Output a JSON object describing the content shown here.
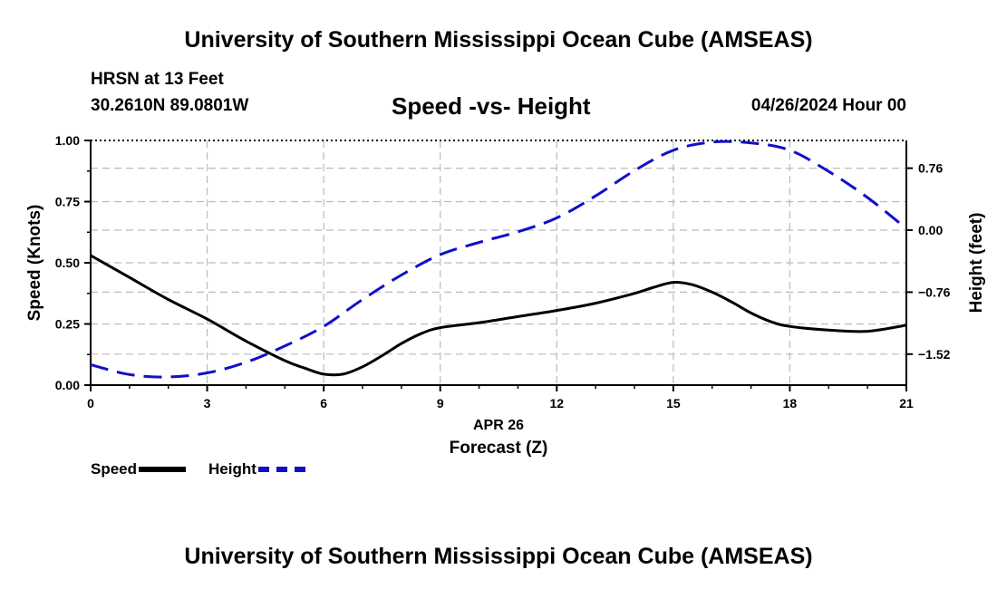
{
  "title": "University of Southern Mississippi Ocean Cube (AMSEAS)",
  "station": "HRSN at 13 Feet",
  "coordinates": "30.2610N  89.0801W",
  "subtitle": "Speed -vs- Height",
  "datetime": "04/26/2024 Hour 00",
  "footer_title": "University of Southern Mississippi Ocean Cube (AMSEAS)",
  "legend": {
    "speed_label": "Speed",
    "height_label": "Height"
  },
  "colors": {
    "speed": "#000000",
    "height": "#1010c8",
    "grid": "#bbbbbb"
  },
  "chart_data": {
    "type": "line",
    "xlabel": "Forecast (Z)",
    "xlabel_date": "APR 26",
    "ylabel_left": "Speed (Knots)",
    "ylabel_right": "Height (feet)",
    "xlim": [
      0,
      21
    ],
    "ylim_left": [
      0,
      1.0
    ],
    "ylim_right": [
      -1.9,
      1.1
    ],
    "x_ticks": [
      0,
      3,
      6,
      9,
      12,
      15,
      18,
      21
    ],
    "x_tick_labels": [
      "0",
      "3",
      "6",
      "9",
      "12",
      "15",
      "18",
      "21"
    ],
    "y_left_ticks": [
      0,
      0.25,
      0.5,
      0.75,
      1.0
    ],
    "y_left_tick_labels": [
      "0.00",
      "0.25",
      "0.50",
      "0.75",
      "1.00"
    ],
    "y_right_ticks": [
      -1.52,
      -0.76,
      0.0,
      0.76
    ],
    "y_right_tick_labels": [
      "−1.52",
      "−0.76",
      "0.00",
      "0.76"
    ],
    "grid": true,
    "series": [
      {
        "name": "Speed",
        "axis": "left",
        "style": "solid",
        "x": [
          0,
          1,
          2,
          3,
          4,
          5,
          5.5,
          6,
          6.5,
          7,
          7.5,
          8,
          8.5,
          9,
          10,
          11,
          12,
          13,
          14,
          14.5,
          15,
          15.5,
          16,
          16.5,
          17,
          17.5,
          18,
          19,
          20,
          21
        ],
        "values": [
          0.53,
          0.44,
          0.35,
          0.27,
          0.18,
          0.1,
          0.07,
          0.045,
          0.045,
          0.075,
          0.12,
          0.17,
          0.21,
          0.235,
          0.255,
          0.28,
          0.305,
          0.335,
          0.375,
          0.4,
          0.42,
          0.41,
          0.38,
          0.34,
          0.295,
          0.26,
          0.24,
          0.225,
          0.22,
          0.245
        ]
      },
      {
        "name": "Height",
        "axis": "right",
        "style": "dashed",
        "x": [
          0,
          1,
          2,
          3,
          4,
          5,
          6,
          7,
          8,
          9,
          10,
          11,
          12,
          13,
          14,
          15,
          16,
          17,
          18,
          19,
          20,
          21
        ],
        "values": [
          -1.65,
          -1.77,
          -1.8,
          -1.75,
          -1.62,
          -1.42,
          -1.18,
          -0.85,
          -0.55,
          -0.3,
          -0.15,
          -0.02,
          0.15,
          0.42,
          0.73,
          0.98,
          1.08,
          1.07,
          0.98,
          0.72,
          0.4,
          0.02
        ]
      }
    ]
  }
}
